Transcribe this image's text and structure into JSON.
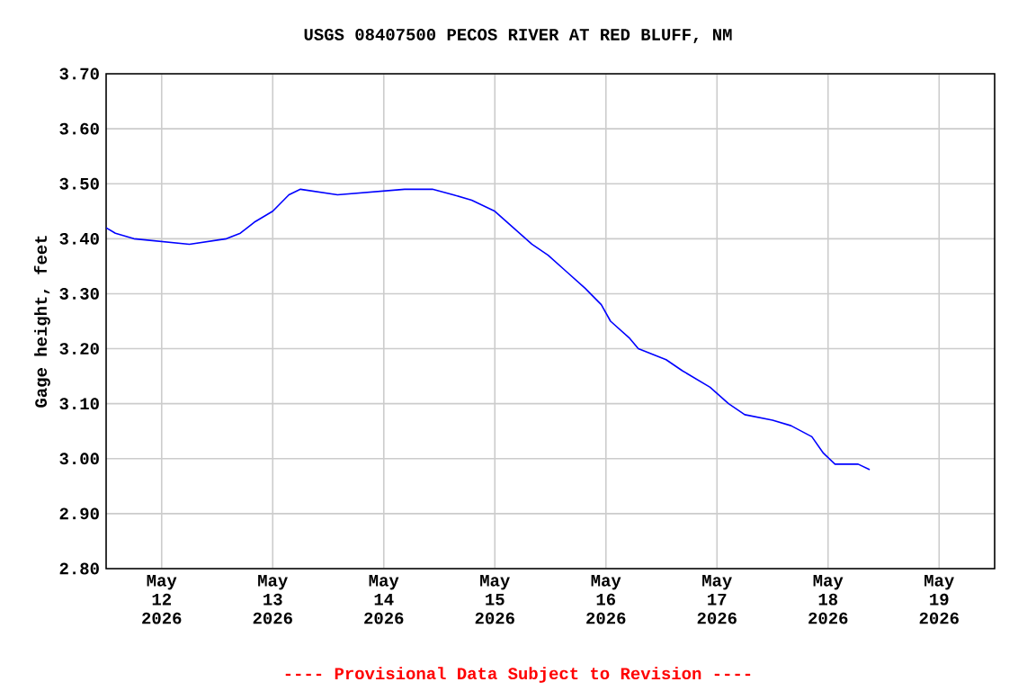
{
  "chart_data": {
    "type": "line",
    "title": "USGS 08407500 PECOS RIVER AT RED BLUFF, NM",
    "ylabel": "Gage height, feet",
    "annotations": [
      "---- Provisional Data Subject to Revision ----"
    ],
    "x": [
      "2026-05-11T12:00",
      "2026-05-11T14:00",
      "2026-05-11T18:00",
      "2026-05-12T06:00",
      "2026-05-12T14:00",
      "2026-05-12T17:00",
      "2026-05-12T20:00",
      "2026-05-13T00:00",
      "2026-05-13T03:30",
      "2026-05-13T06:00",
      "2026-05-13T14:00",
      "2026-05-14T04:30",
      "2026-05-14T10:30",
      "2026-05-14T15:00",
      "2026-05-14T19:00",
      "2026-05-15T00:00",
      "2026-05-15T04:00",
      "2026-05-15T08:00",
      "2026-05-15T11:30",
      "2026-05-15T15:30",
      "2026-05-15T19:30",
      "2026-05-15T23:00",
      "2026-05-16T01:00",
      "2026-05-16T05:00",
      "2026-05-16T07:00",
      "2026-05-16T13:00",
      "2026-05-16T16:30",
      "2026-05-16T22:30",
      "2026-05-17T02:30",
      "2026-05-17T06:00",
      "2026-05-17T12:00",
      "2026-05-17T16:00",
      "2026-05-17T20:30",
      "2026-05-17T23:00",
      "2026-05-18T01:30",
      "2026-05-18T06:30",
      "2026-05-18T09:00"
    ],
    "series": [
      {
        "color": "#0000ff",
        "values": [
          3.42,
          3.41,
          3.4,
          3.39,
          3.4,
          3.41,
          3.43,
          3.45,
          3.48,
          3.49,
          3.48,
          3.49,
          3.49,
          3.48,
          3.47,
          3.45,
          3.42,
          3.39,
          3.37,
          3.34,
          3.31,
          3.28,
          3.25,
          3.22,
          3.2,
          3.18,
          3.16,
          3.13,
          3.1,
          3.08,
          3.07,
          3.06,
          3.04,
          3.01,
          2.99,
          2.99,
          2.98
        ]
      }
    ],
    "xlim": [
      "2026-05-11T12:00",
      "2026-05-19T12:00"
    ],
    "xticks": [
      {
        "value": "2026-05-12",
        "label": "May 12 2026"
      },
      {
        "value": "2026-05-13",
        "label": "May 13 2026"
      },
      {
        "value": "2026-05-14",
        "label": "May 14 2026"
      },
      {
        "value": "2026-05-15",
        "label": "May 15 2026"
      },
      {
        "value": "2026-05-16",
        "label": "May 16 2026"
      },
      {
        "value": "2026-05-17",
        "label": "May 17 2026"
      },
      {
        "value": "2026-05-18",
        "label": "May 18 2026"
      },
      {
        "value": "2026-05-19",
        "label": "May 19 2026"
      }
    ],
    "ylim": [
      2.8,
      3.7
    ],
    "yticks": [
      {
        "value": 2.8,
        "label": "2.80"
      },
      {
        "value": 2.9,
        "label": "2.90"
      },
      {
        "value": 3.0,
        "label": "3.00"
      },
      {
        "value": 3.1,
        "label": "3.10"
      },
      {
        "value": 3.2,
        "label": "3.20"
      },
      {
        "value": 3.3,
        "label": "3.30"
      },
      {
        "value": 3.4,
        "label": "3.40"
      },
      {
        "value": 3.5,
        "label": "3.50"
      },
      {
        "value": 3.6,
        "label": "3.60"
      },
      {
        "value": 3.7,
        "label": "3.70"
      }
    ],
    "grid": true
  }
}
